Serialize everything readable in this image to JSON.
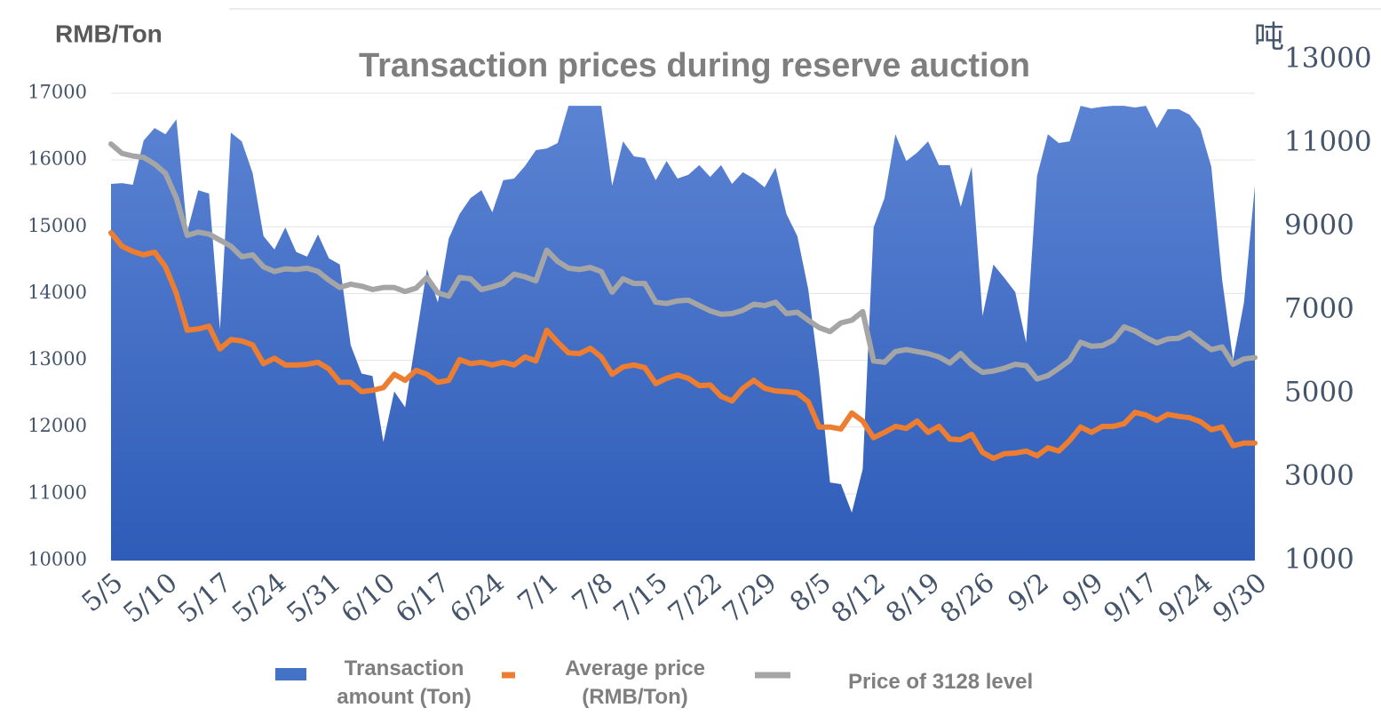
{
  "chart_data": {
    "type": "area-line",
    "title": "Transaction prices during reserve auction",
    "y_label": "RMB/Ton",
    "y2_label": "吨",
    "categories": [
      "5/5",
      null,
      null,
      null,
      null,
      "5/10",
      null,
      null,
      null,
      null,
      "5/17",
      null,
      null,
      null,
      null,
      "5/24",
      null,
      null,
      null,
      null,
      "5/31",
      null,
      null,
      null,
      null,
      "6/10",
      null,
      null,
      null,
      null,
      "6/17",
      null,
      null,
      null,
      null,
      "6/24",
      null,
      null,
      null,
      null,
      "7/1",
      null,
      null,
      null,
      null,
      "7/8",
      null,
      null,
      null,
      null,
      "7/15",
      null,
      null,
      null,
      null,
      "7/22",
      null,
      null,
      null,
      null,
      "7/29",
      null,
      null,
      null,
      null,
      "8/5",
      null,
      null,
      null,
      null,
      "8/12",
      null,
      null,
      null,
      null,
      "8/19",
      null,
      null,
      null,
      null,
      "8/26",
      null,
      null,
      null,
      null,
      "9/2",
      null,
      null,
      null,
      null,
      "9/9",
      null,
      null,
      null,
      null,
      "9/17",
      null,
      null,
      null,
      null,
      "9/24",
      null,
      null,
      null,
      null,
      "9/30"
    ],
    "series": [
      {
        "name": "Transaction amount (Ton)",
        "color": "#4472c4",
        "kind": "area",
        "axis": "y2",
        "values": [
          10020,
          10040,
          10000,
          11060,
          11360,
          11210,
          11570,
          8880,
          9870,
          9790,
          6540,
          11250,
          11040,
          10280,
          8770,
          8450,
          8980,
          8390,
          8280,
          8810,
          8240,
          8090,
          6160,
          5480,
          5420,
          3840,
          5050,
          4670,
          6330,
          7980,
          7180,
          8710,
          9300,
          9680,
          9870,
          9340,
          10110,
          10150,
          10450,
          10830,
          10870,
          11000,
          11890,
          11890,
          11890,
          11890,
          9980,
          11040,
          10680,
          10640,
          10110,
          10570,
          10150,
          10240,
          10470,
          10190,
          10470,
          10020,
          10300,
          10150,
          9940,
          10410,
          9300,
          8770,
          7500,
          5480,
          2870,
          2830,
          2150,
          3190,
          8980,
          9680,
          11210,
          10570,
          10770,
          11040,
          10470,
          10470,
          9470,
          10430,
          6860,
          8090,
          7770,
          7430,
          6220,
          10210,
          11210,
          11000,
          11040,
          11890,
          11830,
          11870,
          11890,
          11890,
          11850,
          11890,
          11360,
          11810,
          11810,
          11680,
          11340,
          10430,
          7710,
          5800,
          7180,
          9980
        ]
      },
      {
        "name": "Average price (RMB/Ton)",
        "color": "#ed7d31",
        "kind": "line",
        "values": [
          14910,
          14710,
          14630,
          14580,
          14620,
          14400,
          14000,
          13450,
          13470,
          13510,
          13170,
          13310,
          13290,
          13230,
          12950,
          13030,
          12930,
          12930,
          12940,
          12970,
          12870,
          12670,
          12670,
          12530,
          12550,
          12590,
          12790,
          12700,
          12850,
          12790,
          12670,
          12700,
          13010,
          12950,
          12970,
          12930,
          12970,
          12930,
          13050,
          12990,
          13450,
          13270,
          13110,
          13100,
          13180,
          13050,
          12790,
          12900,
          12930,
          12890,
          12650,
          12730,
          12780,
          12730,
          12620,
          12630,
          12460,
          12390,
          12580,
          12700,
          12580,
          12540,
          12530,
          12510,
          12380,
          12000,
          12000,
          11970,
          12210,
          12090,
          11840,
          11920,
          12010,
          11980,
          12090,
          11920,
          12010,
          11820,
          11810,
          11890,
          11620,
          11530,
          11600,
          11610,
          11640,
          11570,
          11690,
          11640,
          11800,
          12000,
          11920,
          12010,
          12010,
          12050,
          12220,
          12180,
          12100,
          12190,
          12160,
          12140,
          12080,
          11960,
          12000,
          11720,
          11760,
          11760
        ]
      },
      {
        "name": "Price of 3128 level",
        "color": "#a5a5a5",
        "kind": "line",
        "values": [
          16240,
          16100,
          16060,
          16040,
          15940,
          15800,
          15430,
          14870,
          14920,
          14890,
          14800,
          14710,
          14550,
          14580,
          14400,
          14330,
          14370,
          14360,
          14380,
          14330,
          14200,
          14090,
          14140,
          14110,
          14060,
          14090,
          14090,
          14030,
          14080,
          14240,
          14010,
          13960,
          14240,
          14220,
          14060,
          14100,
          14150,
          14290,
          14250,
          14190,
          14650,
          14480,
          14380,
          14360,
          14390,
          14330,
          14020,
          14220,
          14150,
          14150,
          13870,
          13850,
          13890,
          13900,
          13820,
          13740,
          13690,
          13700,
          13750,
          13840,
          13820,
          13870,
          13700,
          13720,
          13600,
          13490,
          13430,
          13560,
          13600,
          13730,
          12990,
          12970,
          13130,
          13160,
          13130,
          13100,
          13050,
          12960,
          13100,
          12930,
          12820,
          12840,
          12880,
          12940,
          12920,
          12720,
          12770,
          12880,
          13000,
          13270,
          13210,
          13220,
          13300,
          13500,
          13440,
          13340,
          13260,
          13320,
          13330,
          13410,
          13280,
          13160,
          13200,
          12940,
          13020,
          13040
        ]
      }
    ],
    "ylim": [
      10000,
      17000
    ],
    "yticks": [
      10000,
      11000,
      12000,
      13000,
      14000,
      15000,
      16000,
      17000
    ],
    "y2lim": [
      1000,
      13000
    ],
    "y2ticks": [
      1000,
      3000,
      5000,
      7000,
      9000,
      11000,
      13000
    ],
    "grid": true,
    "legend": "bottom"
  }
}
